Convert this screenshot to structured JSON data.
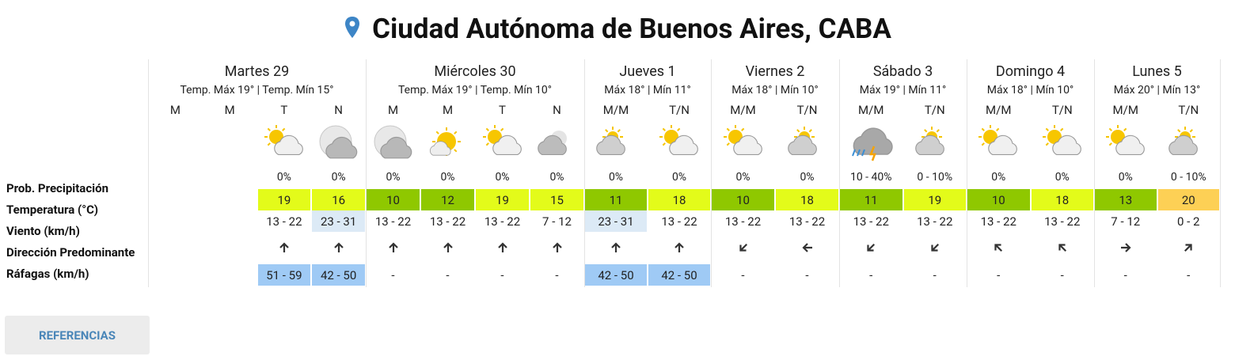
{
  "header": {
    "title": "Ciudad Autónoma de Buenos Aires, CABA"
  },
  "row_labels": [
    "Prob. Precipitación",
    "Temperatura (°C)",
    "Viento (km/h)",
    "Dirección Predominante",
    "Ráfagas (km/h)"
  ],
  "days": [
    {
      "name": "Martes 29",
      "subtitle": "Temp. Máx 19° | Temp. Mín 15°",
      "periods": [
        {
          "label": "M",
          "precip": null,
          "temp": null,
          "wind": null,
          "gust": null
        },
        {
          "label": "M",
          "precip": null,
          "temp": null,
          "wind": null,
          "gust": null
        },
        {
          "label": "T",
          "precip": "0%",
          "temp": 19,
          "wind": "13 - 22",
          "gust": "51 - 59"
        },
        {
          "label": "N",
          "precip": "0%",
          "temp": 16,
          "wind": "23 - 31",
          "gust": "42 - 50"
        }
      ]
    },
    {
      "name": "Miércoles 30",
      "subtitle": "Temp. Máx 19° | Temp. Mín 10°",
      "periods": [
        {
          "label": "M",
          "precip": "0%",
          "temp": 10,
          "wind": "13 - 22",
          "gust": "-"
        },
        {
          "label": "M",
          "precip": "0%",
          "temp": 12,
          "wind": "13 - 22",
          "gust": "-"
        },
        {
          "label": "T",
          "precip": "0%",
          "temp": 19,
          "wind": "13 - 22",
          "gust": "-"
        },
        {
          "label": "N",
          "precip": "0%",
          "temp": 15,
          "wind": "7 - 12",
          "gust": "-"
        }
      ]
    },
    {
      "name": "Jueves 1",
      "subtitle": "Máx 18° | Mín 11°",
      "periods": [
        {
          "label": "M/M",
          "precip": "0%",
          "temp": 11,
          "wind": "23 - 31",
          "gust": "42 - 50"
        },
        {
          "label": "T/N",
          "precip": "0%",
          "temp": 18,
          "wind": "13 - 22",
          "gust": "42 - 50"
        }
      ]
    },
    {
      "name": "Viernes 2",
      "subtitle": "Máx 18° | Mín 10°",
      "periods": [
        {
          "label": "M/M",
          "precip": "0%",
          "temp": 10,
          "wind": "13 - 22",
          "gust": "-"
        },
        {
          "label": "T/N",
          "precip": "0%",
          "temp": 18,
          "wind": "13 - 22",
          "gust": "-"
        }
      ]
    },
    {
      "name": "Sábado 3",
      "subtitle": "Máx 19° | Mín 11°",
      "periods": [
        {
          "label": "M/M",
          "precip": "10 - 40%",
          "temp": 11,
          "wind": "13 - 22",
          "gust": "-"
        },
        {
          "label": "T/N",
          "precip": "0 - 10%",
          "temp": 19,
          "wind": "13 - 22",
          "gust": "-"
        }
      ]
    },
    {
      "name": "Domingo 4",
      "subtitle": "Máx 18° | Mín 10°",
      "periods": [
        {
          "label": "M/M",
          "precip": "0%",
          "temp": 10,
          "wind": "13 - 22",
          "gust": "-"
        },
        {
          "label": "T/N",
          "precip": "0%",
          "temp": 18,
          "wind": "13 - 22",
          "gust": "-"
        }
      ]
    },
    {
      "name": "Lunes 5",
      "subtitle": "Máx 20° | Mín 13°",
      "periods": [
        {
          "label": "M/M",
          "precip": "0%",
          "temp": 13,
          "wind": "7 - 12",
          "gust": "-"
        },
        {
          "label": "T/N",
          "precip": "0 - 10%",
          "temp": 20,
          "wind": "0 - 2",
          "gust": "-"
        }
      ]
    }
  ],
  "button": "REFERENCIAS"
}
